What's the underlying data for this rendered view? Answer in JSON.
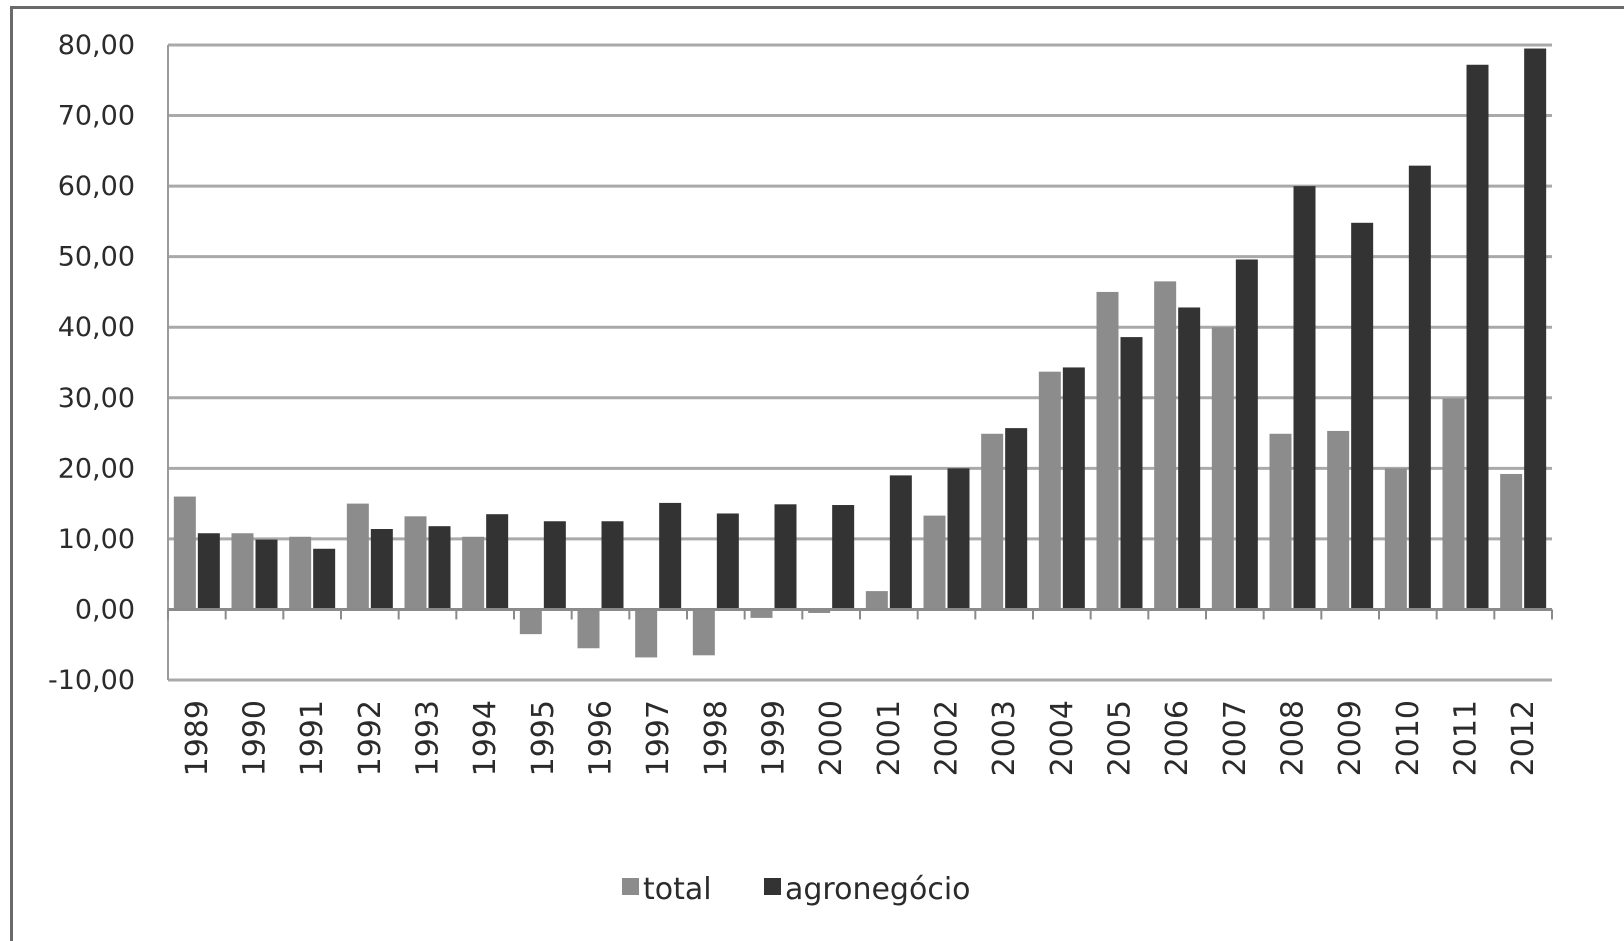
{
  "chart_data": {
    "type": "bar",
    "categories": [
      "1989",
      "1990",
      "1991",
      "1992",
      "1993",
      "1994",
      "1995",
      "1996",
      "1997",
      "1998",
      "1999",
      "2000",
      "2001",
      "2002",
      "2003",
      "2004",
      "2005",
      "2006",
      "2007",
      "2008",
      "2009",
      "2010",
      "2011",
      "2012"
    ],
    "series": [
      {
        "name": "total",
        "color": "#8c8c8c",
        "values": [
          16.0,
          10.8,
          10.3,
          15.0,
          13.2,
          10.3,
          -3.5,
          -5.5,
          -6.8,
          -6.5,
          -1.2,
          -0.5,
          2.6,
          13.3,
          24.9,
          33.7,
          45.0,
          46.5,
          40.0,
          24.9,
          25.3,
          20.0,
          29.9,
          19.2
        ]
      },
      {
        "name": "agronegócio",
        "color": "#333333",
        "values": [
          10.8,
          9.9,
          8.6,
          11.4,
          11.8,
          13.5,
          12.5,
          12.5,
          15.1,
          13.6,
          14.9,
          14.8,
          19.0,
          20.0,
          25.7,
          34.3,
          38.6,
          42.8,
          49.6,
          60.0,
          54.8,
          62.9,
          77.2,
          79.5
        ]
      }
    ],
    "y_ticks": [
      "80,00",
      "70,00",
      "60,00",
      "50,00",
      "40,00",
      "30,00",
      "20,00",
      "10,00",
      "0,00",
      "-10,00"
    ],
    "ylim": [
      -10,
      80
    ],
    "ystep": 10,
    "grid": true,
    "legend_position": "bottom"
  }
}
